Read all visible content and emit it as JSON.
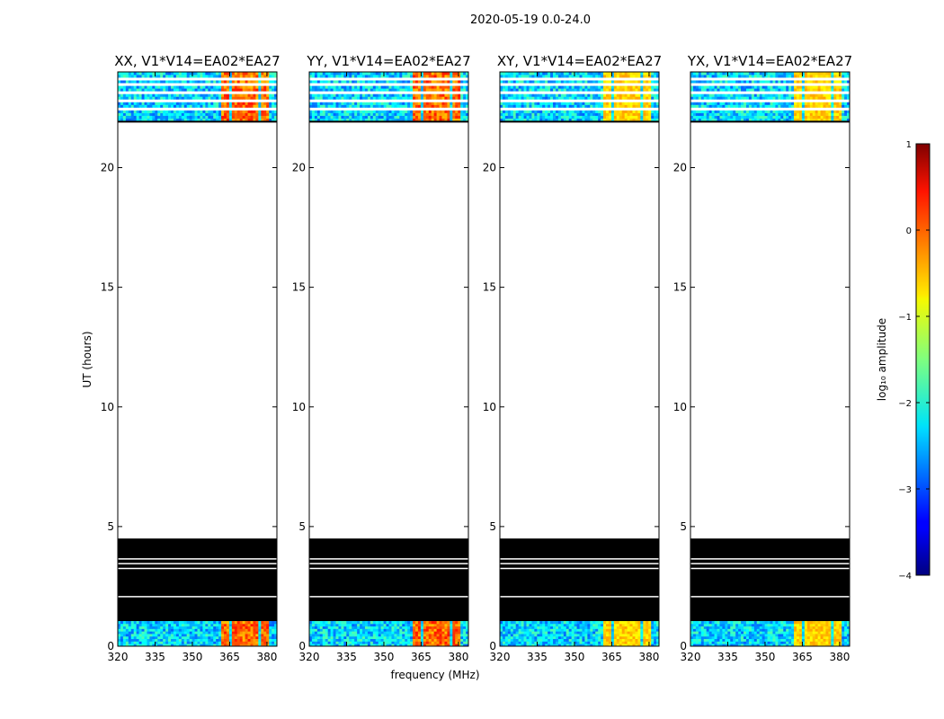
{
  "figure_title": "2020-05-19 0.0-24.0",
  "colors": {
    "fg": "#000000",
    "bg": "#ffffff",
    "flag_line": "#000000"
  },
  "chart_data": {
    "type": "heatmap",
    "title": "2020-05-19 0.0-24.0",
    "ylabel": "UT (hours)",
    "xlabel": "frequency (MHz)",
    "x_range": [
      320,
      384
    ],
    "y_range": [
      0,
      24
    ],
    "x_ticks": [
      320,
      335,
      350,
      365,
      380
    ],
    "y_ticks": [
      0,
      5,
      10,
      15,
      20
    ],
    "panels": [
      {
        "title": "XX, V1*V14=EA02*EA27",
        "pol": "XX"
      },
      {
        "title": "YY, V1*V14=EA02*EA27",
        "pol": "YY"
      },
      {
        "title": "XY, V1*V14=EA02*EA27",
        "pol": "XY"
      },
      {
        "title": "YX, V1*V14=EA02*EA27",
        "pol": "YX"
      }
    ],
    "data_blocks_ut": [
      [
        0.0,
        1.05
      ],
      [
        21.95,
        24.0
      ]
    ],
    "flagged_ut": [
      1.05,
      4.5
    ],
    "flag_gaps_ut": [
      2.07,
      3.25,
      3.45,
      3.65
    ],
    "flag_line_ut": 21.92,
    "hot_freq_range_mhz": [
      361,
      380
    ],
    "hot_channel_width_mhz": 4,
    "colorbar": {
      "label": "log₁₀ amplitude",
      "min": -4,
      "max": 1,
      "ticks": [
        1,
        0,
        -1,
        -2,
        -3,
        -4
      ],
      "tick_labels": [
        "1",
        "0",
        "−1",
        "−2",
        "−3",
        "−4"
      ],
      "colormap": "jet"
    }
  }
}
